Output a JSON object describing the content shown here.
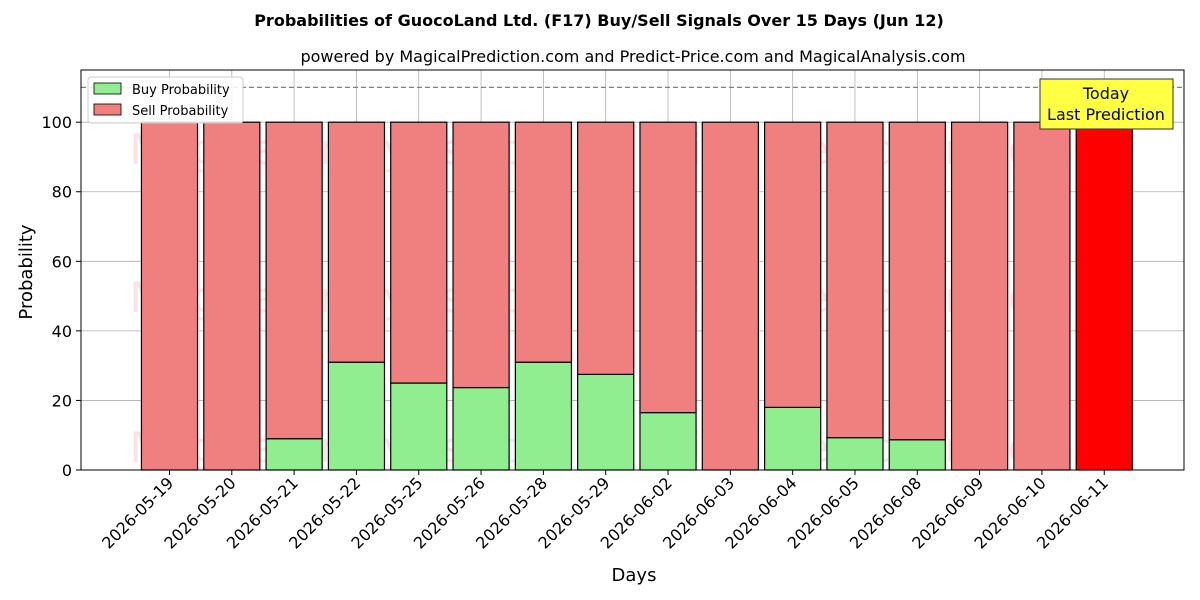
{
  "chart_data": {
    "type": "bar",
    "stacked": true,
    "title": "Probabilities of GuocoLand Ltd. (F17) Buy/Sell Signals Over 15 Days (Jun 12)",
    "subtitle": "powered by MagicalPrediction.com and Predict-Price.com and MagicalAnalysis.com",
    "xlabel": "Days",
    "ylabel": "Probability",
    "ylim": [
      0,
      115
    ],
    "yticks": [
      0,
      20,
      40,
      60,
      80,
      100
    ],
    "reference_line": 110,
    "grid": true,
    "legend_position": "top-left",
    "categories": [
      "2026-05-19",
      "2026-05-20",
      "2026-05-21",
      "2026-05-22",
      "2026-05-25",
      "2026-05-26",
      "2026-05-28",
      "2026-05-29",
      "2026-06-02",
      "2026-06-03",
      "2026-06-04",
      "2026-06-05",
      "2026-06-08",
      "2026-06-09",
      "2026-06-10",
      "2026-06-11"
    ],
    "series": [
      {
        "name": "Buy Probability",
        "color": "#90ee90",
        "values": [
          0,
          0,
          9,
          31,
          25,
          23.7,
          31,
          27.5,
          16.5,
          0,
          18,
          9.3,
          8.7,
          0,
          0,
          0
        ]
      },
      {
        "name": "Sell Probability",
        "color": "#f08080",
        "values": [
          100,
          100,
          91,
          69,
          75,
          76.3,
          69,
          72.5,
          83.5,
          100,
          82,
          90.7,
          91.3,
          100,
          100,
          100
        ]
      }
    ],
    "highlight": {
      "index": 15,
      "color": "#ff0000"
    },
    "annotation": {
      "lines": [
        "Today",
        "Last Prediction"
      ],
      "background": "#ffff44"
    },
    "watermarks": [
      "MagicalAnalysis.com",
      "MagicalPrediction.com"
    ]
  }
}
